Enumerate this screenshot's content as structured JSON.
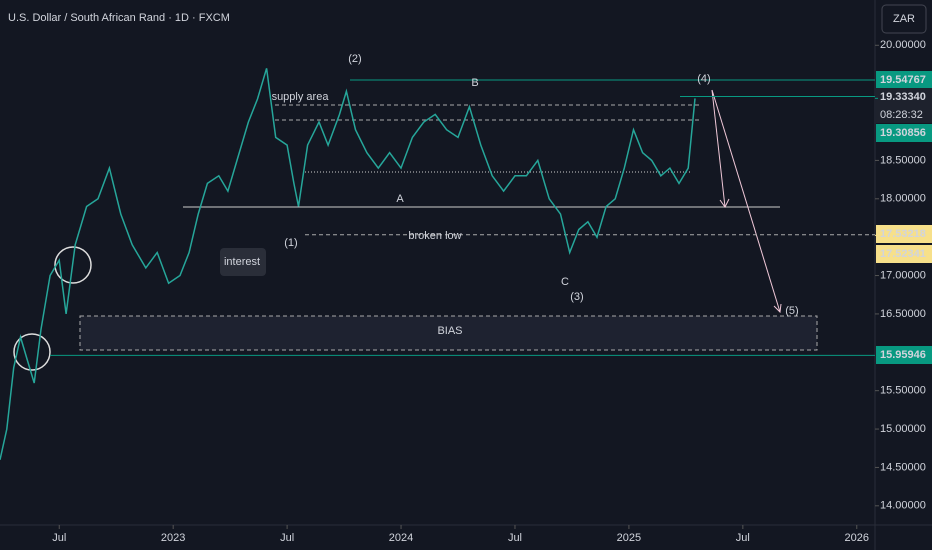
{
  "chart_data": {
    "type": "line",
    "title": "U.S. Dollar / South African Rand · 1D · FXCM",
    "currency": "ZAR",
    "color": "#26a69a",
    "x": [
      2022.24,
      2022.27,
      2022.3,
      2022.33,
      2022.36,
      2022.39,
      2022.42,
      2022.46,
      2022.5,
      2022.53,
      2022.57,
      2022.62,
      2022.67,
      2022.72,
      2022.77,
      2022.82,
      2022.88,
      2022.93,
      2022.98,
      2023.03,
      2023.07,
      2023.11,
      2023.15,
      2023.2,
      2023.24,
      2023.28,
      2023.33,
      2023.37,
      2023.41,
      2023.45,
      2023.5,
      2023.53,
      2023.55,
      2023.59,
      2023.64,
      2023.68,
      2023.73,
      2023.76,
      2023.8,
      2023.85,
      2023.9,
      2023.95,
      2024.0,
      2024.05,
      2024.1,
      2024.15,
      2024.2,
      2024.25,
      2024.3,
      2024.35,
      2024.4,
      2024.45,
      2024.5,
      2024.55,
      2024.6,
      2024.65,
      2024.7,
      2024.74,
      2024.78,
      2024.82,
      2024.86,
      2024.9,
      2024.94,
      2024.98,
      2025.02,
      2025.06,
      2025.1,
      2025.14,
      2025.18,
      2025.22,
      2025.26,
      2025.29
    ],
    "values": [
      14.6,
      15.0,
      15.8,
      16.2,
      15.9,
      15.6,
      16.3,
      17.0,
      17.2,
      16.5,
      17.4,
      17.9,
      18.0,
      18.4,
      17.8,
      17.4,
      17.1,
      17.3,
      16.9,
      17.0,
      17.3,
      17.8,
      18.2,
      18.3,
      18.1,
      18.5,
      19.0,
      19.3,
      19.7,
      18.8,
      18.7,
      18.2,
      17.9,
      18.7,
      19.0,
      18.7,
      19.1,
      19.4,
      18.9,
      18.6,
      18.4,
      18.6,
      18.4,
      18.8,
      19.0,
      19.1,
      18.9,
      18.8,
      19.2,
      18.7,
      18.3,
      18.1,
      18.3,
      18.3,
      18.5,
      18.0,
      17.8,
      17.3,
      17.6,
      17.7,
      17.5,
      17.9,
      18.0,
      18.4,
      18.9,
      18.6,
      18.5,
      18.3,
      18.4,
      18.2,
      18.4,
      19.30856
    ],
    "xlim": [
      2022.24,
      2026.08
    ],
    "ylim": [
      13.75,
      20.59
    ],
    "xticks": [
      {
        "value": 2022.5,
        "label": "Jul"
      },
      2023,
      {
        "value": 2023.5,
        "label": "Jul"
      },
      2024,
      {
        "value": 2024.5,
        "label": "Jul"
      },
      2025,
      {
        "value": 2025.5,
        "label": "Jul"
      },
      2026
    ],
    "yticks": [
      {
        "value": 20,
        "label": "20.00000"
      },
      {
        "value": 18.5,
        "label": "18.50000"
      },
      {
        "value": 18,
        "label": "18.00000"
      },
      {
        "value": 17,
        "label": "17.00000"
      },
      {
        "value": 16.5,
        "label": "16.50000"
      },
      {
        "value": 15.5,
        "label": "15.50000"
      },
      {
        "value": 15,
        "label": "15.00000"
      },
      {
        "value": 14.5,
        "label": "14.50000"
      },
      {
        "value": 14,
        "label": "14.00000"
      }
    ],
    "price_levels": [
      {
        "value": 19.54767,
        "color": "#089981"
      },
      {
        "value": {
          "value": 19.3334,
          "label": "19.33340"
        },
        "color": "#1e222d"
      },
      {
        "value": 19.30856,
        "color": "#089981"
      },
      {
        "value": 17.53218,
        "color": "#f7e08a"
      },
      {
        "value": 17.52341,
        "color": "#f7e08a"
      },
      {
        "value": 15.95946,
        "color": "#089981"
      }
    ],
    "countdown": "08:28:32",
    "annotations": [
      "(1)",
      "(2)",
      "(3)",
      "(4)",
      "(5)",
      "A",
      "B",
      "C",
      "supply area",
      "broken low",
      "interest",
      "BIAS"
    ]
  }
}
